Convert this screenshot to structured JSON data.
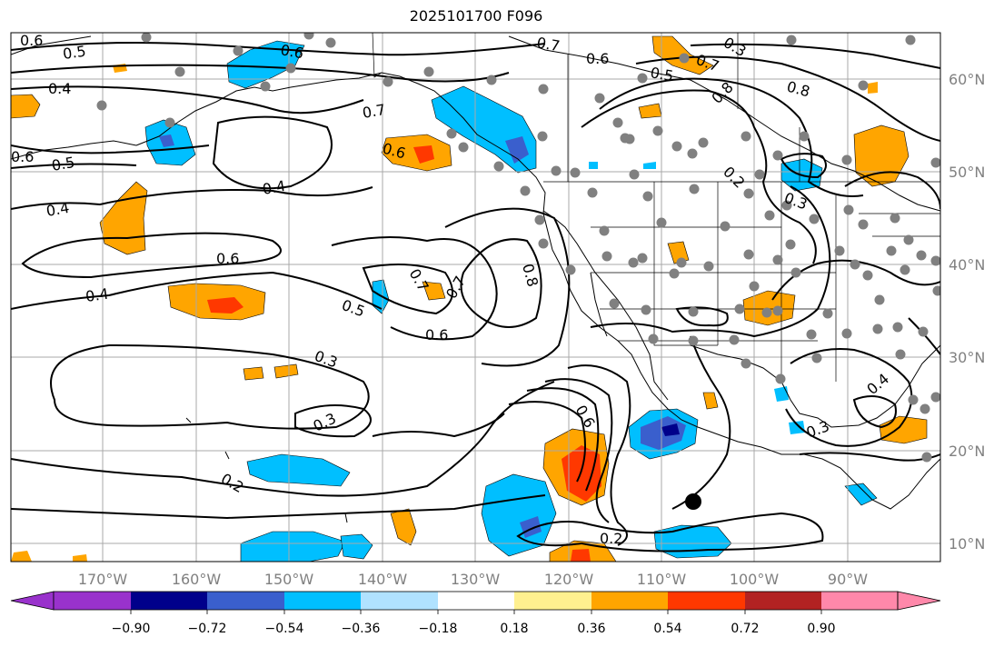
{
  "title": "2025101700 F096",
  "map": {
    "lon_ticks": [
      "170°W",
      "160°W",
      "150°W",
      "140°W",
      "130°W",
      "120°W",
      "110°W",
      "100°W",
      "90°W"
    ],
    "lat_ticks": [
      "60°N",
      "50°N",
      "40°N",
      "30°N",
      "20°N",
      "10°N"
    ],
    "contour_labels": [
      "0.6",
      "0.5",
      "0.4",
      "0.6",
      "0.5",
      "0.4",
      "0.4",
      "0.6",
      "0.4",
      "0.7",
      "0.6",
      "0.6",
      "0.7",
      "0.6",
      "0.5",
      "0.7",
      "0.8",
      "0.7",
      "0.7",
      "0.8",
      "0.5",
      "0.6",
      "0.3",
      "0.3",
      "0.2",
      "0.6",
      "0.2",
      "0.2",
      "0.3",
      "0.8",
      "0.3",
      "0.4",
      "0.3"
    ],
    "marker_color": "#808080"
  },
  "colorbar": {
    "labels": [
      "−0.90",
      "−0.72",
      "−0.54",
      "−0.36",
      "−0.18",
      "0.18",
      "0.36",
      "0.54",
      "0.72",
      "0.90"
    ],
    "colors": [
      "#9932cc",
      "#00008b",
      "#3a5fcd",
      "#00bfff",
      "#b0e2ff",
      "#ffffff",
      "#fff08f",
      "#ffa500",
      "#ff3800",
      "#b22222",
      "#ff88aa"
    ],
    "under_color": "#9932cc",
    "over_color": "#ff88aa"
  }
}
